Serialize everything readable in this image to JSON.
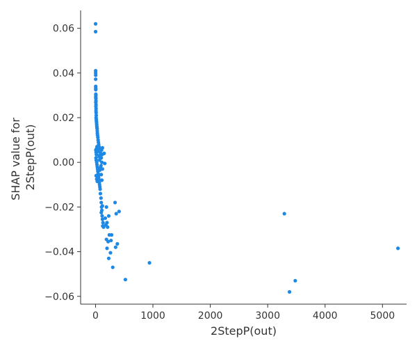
{
  "chart_data": {
    "type": "scatter",
    "xlabel": "2StepP(out)",
    "ylabel_lines": [
      "SHAP value for",
      "2StepP(out)"
    ],
    "xlim": [
      -260,
      5420
    ],
    "ylim": [
      -0.0635,
      0.068
    ],
    "xticks": [
      0,
      1000,
      2000,
      3000,
      4000,
      5000
    ],
    "yticks": [
      -0.06,
      -0.04,
      -0.02,
      0.0,
      0.02,
      0.04,
      0.06
    ],
    "ytick_labels": [
      "−0.06",
      "−0.04",
      "−0.02",
      "0.00",
      "0.02",
      "0.04",
      "0.06"
    ],
    "grid": false,
    "point_color": "#1E88E5",
    "points": [
      [
        1,
        0.062
      ],
      [
        1,
        0.0585
      ],
      [
        2,
        0.041
      ],
      [
        2,
        0.04
      ],
      [
        3,
        0.039
      ],
      [
        2,
        0.0372
      ],
      [
        3,
        0.034
      ],
      [
        4,
        0.0332
      ],
      [
        4,
        0.0325
      ],
      [
        5,
        0.0305
      ],
      [
        6,
        0.03
      ],
      [
        4,
        0.0292
      ],
      [
        6,
        0.0285
      ],
      [
        7,
        0.0275
      ],
      [
        5,
        0.0268
      ],
      [
        8,
        0.0258
      ],
      [
        6,
        0.025
      ],
      [
        9,
        0.024
      ],
      [
        8,
        0.023
      ],
      [
        10,
        0.0222
      ],
      [
        12,
        0.021
      ],
      [
        10,
        0.02
      ],
      [
        14,
        0.0192
      ],
      [
        15,
        0.0185
      ],
      [
        18,
        0.0178
      ],
      [
        20,
        0.017
      ],
      [
        22,
        0.0162
      ],
      [
        25,
        0.0155
      ],
      [
        28,
        0.015
      ],
      [
        30,
        0.014
      ],
      [
        32,
        0.013
      ],
      [
        35,
        0.0122
      ],
      [
        40,
        0.0112
      ],
      [
        45,
        0.01
      ],
      [
        50,
        0.009
      ],
      [
        55,
        0.008
      ],
      [
        60,
        0.007
      ],
      [
        58,
        0.005
      ],
      [
        62,
        0.003
      ],
      [
        5,
        0.0055
      ],
      [
        10,
        0.0045
      ],
      [
        15,
        0.0035
      ],
      [
        8,
        0.002
      ],
      [
        12,
        0.001
      ],
      [
        20,
        0.0
      ],
      [
        25,
        -0.001
      ],
      [
        30,
        -0.002
      ],
      [
        35,
        -0.003
      ],
      [
        40,
        -0.004
      ],
      [
        45,
        -0.005
      ],
      [
        50,
        -0.006
      ],
      [
        55,
        -0.007
      ],
      [
        60,
        -0.008
      ],
      [
        65,
        -0.009
      ],
      [
        70,
        -0.01
      ],
      [
        75,
        -0.011
      ],
      [
        10,
        -0.006
      ],
      [
        20,
        -0.0075
      ],
      [
        30,
        -0.0085
      ],
      [
        15,
        0.006
      ],
      [
        25,
        0.007
      ],
      [
        35,
        0.0055
      ],
      [
        45,
        0.0048
      ],
      [
        80,
        0.006
      ],
      [
        90,
        0.004
      ],
      [
        100,
        0.002
      ],
      [
        110,
        0.0
      ],
      [
        115,
        0.0035
      ],
      [
        120,
        0.0065
      ],
      [
        105,
        0.0055
      ],
      [
        95,
        -0.0015
      ],
      [
        85,
        -0.0025
      ],
      [
        100,
        -0.0055
      ],
      [
        110,
        -0.008
      ],
      [
        120,
        -0.003
      ],
      [
        70,
        0.001
      ],
      [
        75,
        -0.0035
      ],
      [
        65,
        0.0025
      ],
      [
        150,
        0.004
      ],
      [
        160,
        -0.0005
      ],
      [
        80,
        -0.012
      ],
      [
        85,
        -0.014
      ],
      [
        95,
        -0.016
      ],
      [
        100,
        -0.018
      ],
      [
        105,
        -0.02
      ],
      [
        110,
        -0.0215
      ],
      [
        115,
        -0.024
      ],
      [
        120,
        -0.0255
      ],
      [
        130,
        -0.027
      ],
      [
        125,
        -0.0285
      ],
      [
        140,
        -0.029
      ],
      [
        170,
        -0.025
      ],
      [
        180,
        -0.028
      ],
      [
        210,
        -0.029
      ],
      [
        200,
        -0.027
      ],
      [
        230,
        -0.024
      ],
      [
        190,
        -0.02
      ],
      [
        120,
        -0.0195
      ],
      [
        100,
        -0.0225
      ],
      [
        190,
        -0.0345
      ],
      [
        220,
        -0.0355
      ],
      [
        240,
        -0.0325
      ],
      [
        280,
        -0.0325
      ],
      [
        270,
        -0.035
      ],
      [
        200,
        -0.0385
      ],
      [
        260,
        -0.0405
      ],
      [
        230,
        -0.043
      ],
      [
        300,
        -0.047
      ],
      [
        350,
        -0.038
      ],
      [
        380,
        -0.0365
      ],
      [
        340,
        -0.018
      ],
      [
        410,
        -0.022
      ],
      [
        360,
        -0.023
      ],
      [
        520,
        -0.0525
      ],
      [
        940,
        -0.045
      ],
      [
        3290,
        -0.023
      ],
      [
        3380,
        -0.058
      ],
      [
        3480,
        -0.053
      ],
      [
        5270,
        -0.0385
      ]
    ]
  }
}
